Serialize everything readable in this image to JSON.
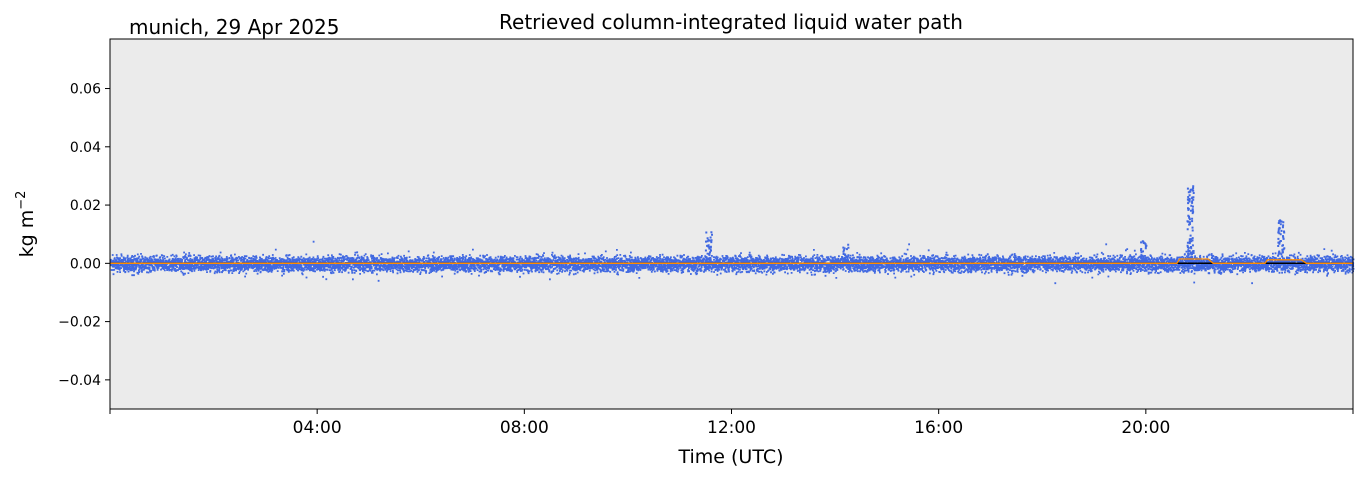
{
  "chart_data": {
    "type": "scatter",
    "title": "Retrieved column-integrated liquid water path",
    "subtitle": "munich, 29 Apr 2025",
    "xlabel": "Time (UTC)",
    "ylabel": "kg m",
    "ylabel_exponent": "−2",
    "xlim_hours": [
      0,
      24
    ],
    "ylim": [
      -0.05,
      0.077
    ],
    "xticks": [
      {
        "hour": 4,
        "label": "04:00"
      },
      {
        "hour": 8,
        "label": "08:00"
      },
      {
        "hour": 12,
        "label": "12:00"
      },
      {
        "hour": 16,
        "label": "16:00"
      },
      {
        "hour": 20,
        "label": "20:00"
      }
    ],
    "yticks": [
      {
        "value": 0.06,
        "label": "0.06"
      },
      {
        "value": 0.04,
        "label": "0.04"
      },
      {
        "value": 0.02,
        "label": "0.02"
      },
      {
        "value": 0.0,
        "label": "0.00"
      },
      {
        "value": -0.02,
        "label": "−0.02"
      },
      {
        "value": -0.04,
        "label": "−0.04"
      }
    ],
    "grid": false,
    "background": "#ebebeb",
    "series": [
      {
        "style": "points",
        "color": "#4169e1",
        "typical_range": [
          -0.004,
          0.004
        ],
        "spikes": [
          {
            "x_hour": 11.55,
            "y_max": 0.011
          },
          {
            "x_hour": 20.85,
            "y_max": 0.027
          },
          {
            "x_hour": 22.6,
            "y_max": 0.015
          },
          {
            "x_hour": 14.2,
            "y_max": 0.0075
          },
          {
            "x_hour": 19.95,
            "y_max": 0.0078
          }
        ]
      },
      {
        "style": "line",
        "color": "#ff8c00",
        "points": [
          [
            0,
            0.0
          ],
          [
            20.6,
            0.0
          ],
          [
            20.65,
            0.0015
          ],
          [
            21.2,
            0.0015
          ],
          [
            21.3,
            0.0
          ],
          [
            22.3,
            0.0
          ],
          [
            22.35,
            0.0012
          ],
          [
            23.0,
            0.0012
          ],
          [
            23.1,
            0.0
          ],
          [
            24,
            0.0
          ]
        ]
      },
      {
        "style": "line",
        "color": "#000000",
        "points": [
          [
            0,
            0.0
          ],
          [
            24,
            0.0
          ]
        ]
      }
    ]
  }
}
